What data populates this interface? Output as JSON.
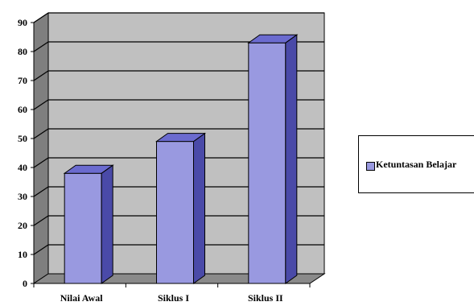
{
  "chart_data": {
    "type": "bar",
    "categories": [
      "Nilai Awal",
      "Siklus I",
      "Siklus II"
    ],
    "series": [
      {
        "name": "Ketuntasan Belajar",
        "values": [
          38,
          49,
          83
        ]
      }
    ],
    "ylim": [
      0,
      90
    ],
    "yticks": [
      "0",
      "10",
      "20",
      "30",
      "40",
      "50",
      "60",
      "70",
      "80",
      "90"
    ],
    "style": "3d-bar",
    "grid": true,
    "legend_position": "right",
    "colors": {
      "bar_front": "#9999e0",
      "bar_side": "#4a4aa8",
      "bar_top": "#6b6bcf",
      "plot_back": "#c0c0c0",
      "plot_wall": "#7f7f7f",
      "plot_floor": "#8a8a8a",
      "gridline": "#000000"
    }
  }
}
